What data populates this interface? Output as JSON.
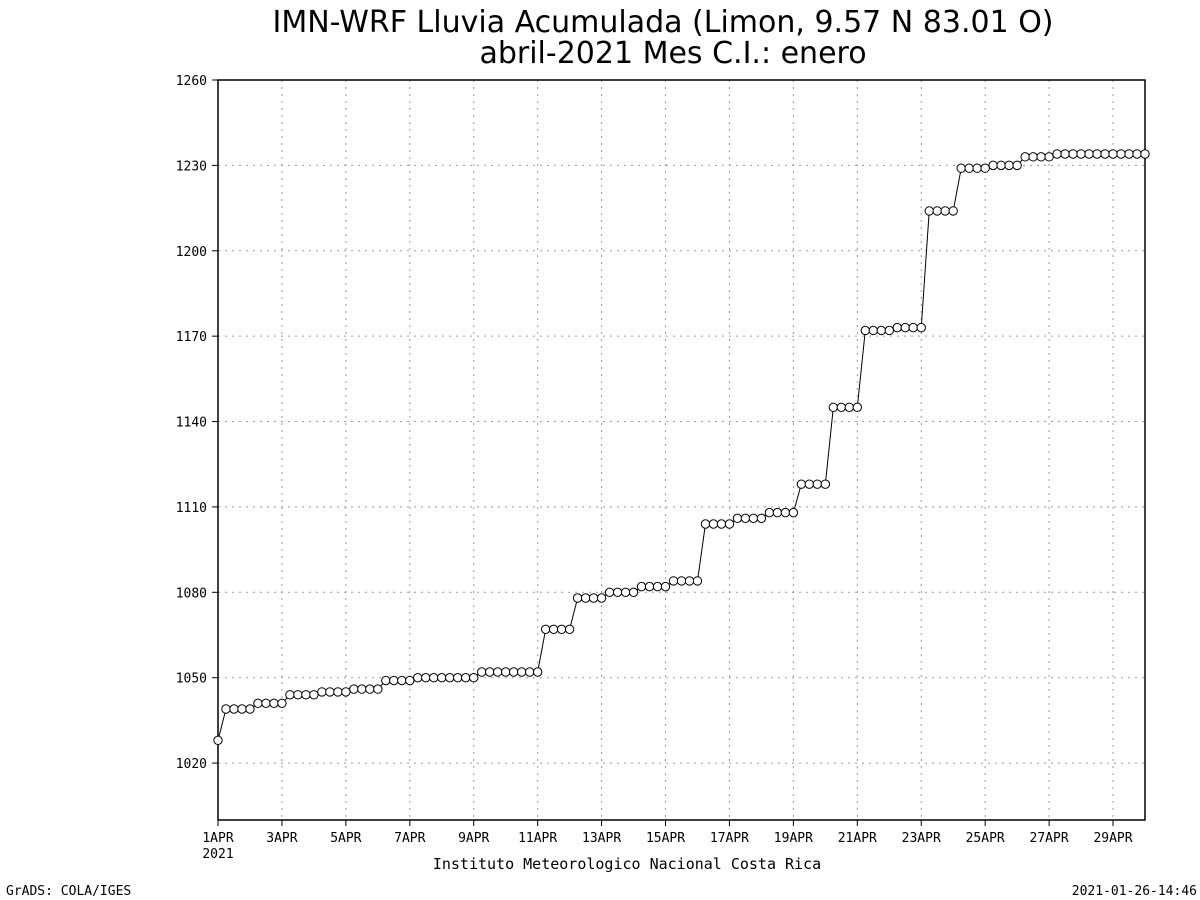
{
  "chart_data": {
    "type": "line",
    "title": "IMN-WRF  Lluvia Acumulada  (Limon, 9.57  N 83.01  O)",
    "subtitle": "abril-2021 Mes C.I.: enero",
    "xlabel": "Instituto Meteorologico Nacional Costa Rica",
    "ylabel": "",
    "ylim": [
      1000,
      1260
    ],
    "yticks": [
      1020,
      1050,
      1080,
      1110,
      1140,
      1170,
      1200,
      1230,
      1260
    ],
    "xlim": [
      0,
      29
    ],
    "xticks": [
      {
        "day": 0,
        "label": "1APR"
      },
      {
        "day": 2,
        "label": "3APR"
      },
      {
        "day": 4,
        "label": "5APR"
      },
      {
        "day": 6,
        "label": "7APR"
      },
      {
        "day": 8,
        "label": "9APR"
      },
      {
        "day": 10,
        "label": "11APR"
      },
      {
        "day": 12,
        "label": "13APR"
      },
      {
        "day": 14,
        "label": "15APR"
      },
      {
        "day": 16,
        "label": "17APR"
      },
      {
        "day": 18,
        "label": "19APR"
      },
      {
        "day": 20,
        "label": "21APR"
      },
      {
        "day": 22,
        "label": "23APR"
      },
      {
        "day": 24,
        "label": "25APR"
      },
      {
        "day": 26,
        "label": "27APR"
      },
      {
        "day": 28,
        "label": "29APR"
      }
    ],
    "year_label": "2021",
    "grid": true,
    "marker": "open-circle",
    "series": [
      {
        "x_step_days": 0.25,
        "values": [
          1028,
          1039,
          1039,
          1039,
          1039,
          1041,
          1041,
          1041,
          1041,
          1044,
          1044,
          1044,
          1044,
          1045,
          1045,
          1045,
          1045,
          1046,
          1046,
          1046,
          1046,
          1049,
          1049,
          1049,
          1049,
          1050,
          1050,
          1050,
          1050,
          1050,
          1050,
          1050,
          1050,
          1052,
          1052,
          1052,
          1052,
          1052,
          1052,
          1052,
          1052,
          1067,
          1067,
          1067,
          1067,
          1078,
          1078,
          1078,
          1078,
          1080,
          1080,
          1080,
          1080,
          1082,
          1082,
          1082,
          1082,
          1084,
          1084,
          1084,
          1084,
          1104,
          1104,
          1104,
          1104,
          1106,
          1106,
          1106,
          1106,
          1108,
          1108,
          1108,
          1108,
          1118,
          1118,
          1118,
          1118,
          1145,
          1145,
          1145,
          1145,
          1172,
          1172,
          1172,
          1172,
          1173,
          1173,
          1173,
          1173,
          1214,
          1214,
          1214,
          1214,
          1229,
          1229,
          1229,
          1229,
          1230,
          1230,
          1230,
          1230,
          1233,
          1233,
          1233,
          1233,
          1234,
          1234,
          1234,
          1234,
          1234,
          1234,
          1234,
          1234,
          1234,
          1234,
          1234,
          1234
        ]
      }
    ]
  },
  "footer": {
    "left": "GrADS: COLA/IGES",
    "right": "2021-01-26-14:46"
  }
}
